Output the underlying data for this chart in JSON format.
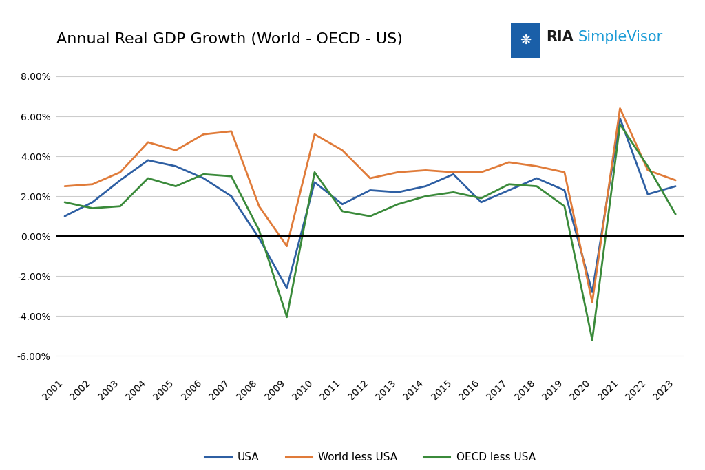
{
  "title": "Annual Real GDP Growth (World - OECD - US)",
  "years": [
    2001,
    2002,
    2003,
    2004,
    2005,
    2006,
    2007,
    2008,
    2009,
    2010,
    2011,
    2012,
    2013,
    2014,
    2015,
    2016,
    2017,
    2018,
    2019,
    2020,
    2021,
    2022,
    2023
  ],
  "usa": [
    1.0,
    1.7,
    2.8,
    3.8,
    3.5,
    2.9,
    2.0,
    -0.1,
    -2.6,
    2.7,
    1.6,
    2.3,
    2.2,
    2.5,
    3.1,
    1.7,
    2.3,
    2.9,
    2.3,
    -2.8,
    5.9,
    2.1,
    2.5
  ],
  "world_less_usa": [
    2.5,
    2.6,
    3.2,
    4.7,
    4.3,
    5.1,
    5.25,
    1.5,
    -0.5,
    5.1,
    4.3,
    2.9,
    3.2,
    3.3,
    3.2,
    3.2,
    3.7,
    3.5,
    3.2,
    -3.3,
    6.4,
    3.3,
    2.8
  ],
  "oecd_less_usa": [
    1.7,
    1.4,
    1.5,
    2.9,
    2.5,
    3.1,
    3.0,
    0.3,
    -4.05,
    3.2,
    1.25,
    1.0,
    1.6,
    2.0,
    2.2,
    1.9,
    2.6,
    2.5,
    1.5,
    -5.2,
    5.6,
    3.5,
    1.1
  ],
  "usa_color": "#2e5fa3",
  "world_color": "#e07b39",
  "oecd_color": "#3a8a3a",
  "background_color": "#ffffff",
  "grid_color": "#cccccc",
  "zero_line_color": "#000000",
  "ylim_min": -7.0,
  "ylim_max": 9.0,
  "yticks": [
    -6.0,
    -4.0,
    -2.0,
    0.0,
    2.0,
    4.0,
    6.0,
    8.0
  ],
  "legend_labels": [
    "USA",
    "World less USA",
    "OECD less USA"
  ],
  "ria_color": "#1a1a1a",
  "simplevisor_color": "#1a9bd6",
  "logo_bg_color": "#1a5fa8"
}
